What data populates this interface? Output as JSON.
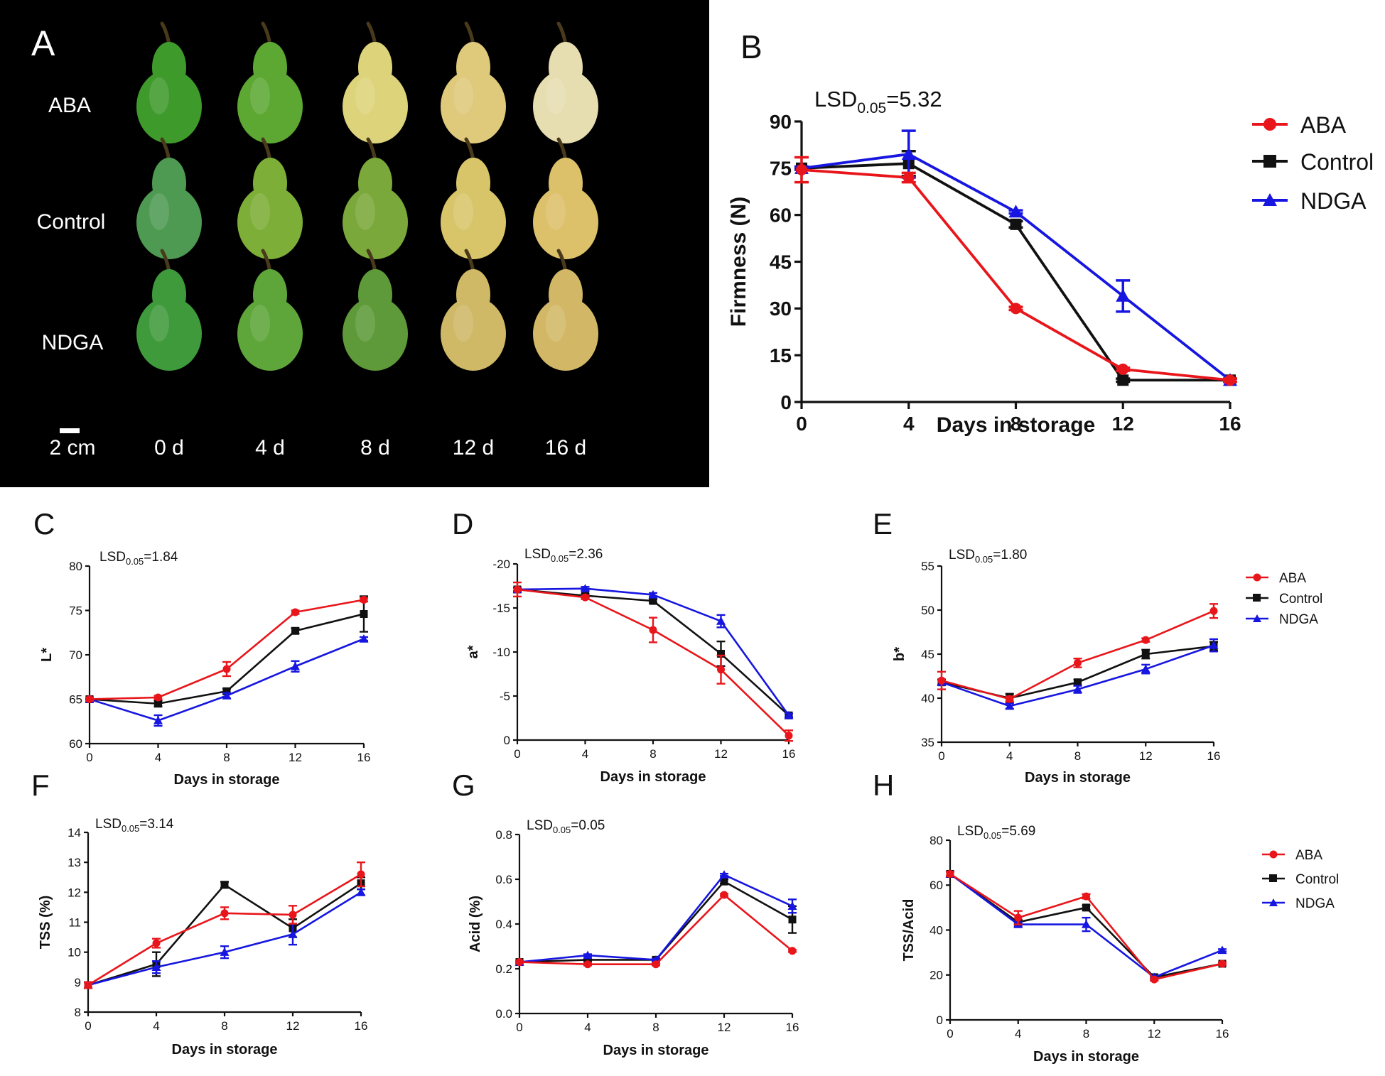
{
  "photo_panel": {
    "letter": "A",
    "rows": [
      "ABA",
      "Control",
      "NDGA"
    ],
    "days": [
      "0 d",
      "4 d",
      "8 d",
      "12 d",
      "16 d"
    ],
    "scale_label": "2 cm",
    "fruit_colors": [
      [
        "#3f9a2c",
        "#5da833",
        "#ddd37a",
        "#dfc97a",
        "#e6ddb0"
      ],
      [
        "#4e9a52",
        "#7dae37",
        "#7aa83a",
        "#d8c56a",
        "#dcc06a"
      ],
      [
        "#3f9a3c",
        "#5ea63a",
        "#5e9a3a",
        "#cfb866",
        "#d2b866"
      ]
    ]
  },
  "legend_series": [
    {
      "name": "ABA",
      "color": "#e8161b",
      "marker": "circle"
    },
    {
      "name": "Control",
      "color": "#111111",
      "marker": "square"
    },
    {
      "name": "NDGA",
      "color": "#1616e0",
      "marker": "triangle"
    }
  ],
  "chart_data": [
    {
      "id": "B",
      "letter": "B",
      "type": "line",
      "lsd": {
        "prefix": "LSD",
        "sub": "0.05",
        "value": "=5.32"
      },
      "xlabel": "Days in storage",
      "ylabel": "Firmness (N)",
      "x": [
        0,
        4,
        8,
        12,
        16
      ],
      "xticks": [
        "0",
        "4",
        "8",
        "12",
        "16"
      ],
      "ylim": [
        0,
        90
      ],
      "yticks": [
        "0",
        "15",
        "30",
        "45",
        "60",
        "75",
        "90"
      ],
      "series": [
        {
          "name": "ABA",
          "values": [
            74.5,
            72.0,
            30.0,
            10.5,
            7.0
          ],
          "err": [
            4.0,
            1.5,
            0.5,
            0.5,
            0.5
          ]
        },
        {
          "name": "Control",
          "values": [
            75.0,
            76.5,
            57.0,
            7.0,
            7.0
          ],
          "err": [
            0.5,
            4.0,
            1.0,
            0.5,
            0.5
          ]
        },
        {
          "name": "NDGA",
          "values": [
            75.0,
            79.5,
            61.0,
            34.0,
            7.0
          ],
          "err": [
            0.5,
            7.5,
            0.5,
            5.0,
            0.5
          ]
        }
      ]
    },
    {
      "id": "C",
      "letter": "C",
      "type": "line",
      "lsd": {
        "prefix": "LSD",
        "sub": "0.05",
        "value": "=1.84"
      },
      "xlabel": "Days in storage",
      "ylabel": "L*",
      "x": [
        0,
        4,
        8,
        12,
        16
      ],
      "xticks": [
        "0",
        "4",
        "8",
        "12",
        "16"
      ],
      "ylim": [
        60,
        80
      ],
      "yticks": [
        "60",
        "65",
        "70",
        "75",
        "80"
      ],
      "series": [
        {
          "name": "ABA",
          "values": [
            65.0,
            65.2,
            68.4,
            74.8,
            76.2
          ],
          "err": [
            0.2,
            0.2,
            0.8,
            0.2,
            0.2
          ]
        },
        {
          "name": "Control",
          "values": [
            65.0,
            64.5,
            65.9,
            72.7,
            74.6
          ],
          "err": [
            0.2,
            0.3,
            0.3,
            0.3,
            2.0
          ]
        },
        {
          "name": "NDGA",
          "values": [
            65.0,
            62.6,
            65.4,
            68.7,
            71.8
          ],
          "err": [
            0.2,
            0.6,
            0.3,
            0.6,
            0.2
          ]
        }
      ]
    },
    {
      "id": "D",
      "letter": "D",
      "type": "line",
      "lsd": {
        "prefix": "LSD",
        "sub": "0.05",
        "value": "=2.36"
      },
      "xlabel": "Days in storage",
      "ylabel": "a*",
      "x": [
        0,
        4,
        8,
        12,
        16
      ],
      "xticks": [
        "0",
        "4",
        "8",
        "12",
        "16"
      ],
      "ylim": [
        0,
        -20
      ],
      "yticks": [
        "0",
        "-5",
        "-10",
        "-15",
        "-20"
      ],
      "series": [
        {
          "name": "ABA",
          "values": [
            -17.1,
            -16.2,
            -12.5,
            -8.0,
            -0.5
          ],
          "err": [
            0.8,
            0.2,
            1.4,
            1.6,
            0.6
          ]
        },
        {
          "name": "Control",
          "values": [
            -17.1,
            -16.4,
            -15.8,
            -9.8,
            -2.8
          ],
          "err": [
            0.2,
            0.2,
            0.2,
            1.4,
            0.2
          ]
        },
        {
          "name": "NDGA",
          "values": [
            -17.1,
            -17.2,
            -16.5,
            -13.5,
            -2.8
          ],
          "err": [
            0.2,
            0.2,
            0.2,
            0.7,
            0.2
          ]
        }
      ]
    },
    {
      "id": "E",
      "letter": "E",
      "type": "line",
      "lsd": {
        "prefix": "LSD",
        "sub": "0.05",
        "value": "=1.80"
      },
      "xlabel": "Days in storage",
      "ylabel": "b*",
      "x": [
        0,
        4,
        8,
        12,
        16
      ],
      "xticks": [
        "0",
        "4",
        "8",
        "12",
        "16"
      ],
      "ylim": [
        35,
        55
      ],
      "yticks": [
        "35",
        "40",
        "45",
        "50",
        "55"
      ],
      "series": [
        {
          "name": "ABA",
          "values": [
            42.0,
            39.9,
            44.0,
            46.6,
            49.9
          ],
          "err": [
            1.0,
            0.3,
            0.5,
            0.2,
            0.8
          ]
        },
        {
          "name": "Control",
          "values": [
            41.8,
            40.0,
            41.8,
            45.0,
            45.9
          ],
          "err": [
            0.3,
            0.5,
            0.3,
            0.5,
            0.5
          ]
        },
        {
          "name": "NDGA",
          "values": [
            41.8,
            39.1,
            41.0,
            43.3,
            46.0
          ],
          "err": [
            0.3,
            0.3,
            0.4,
            0.5,
            0.7
          ]
        }
      ]
    },
    {
      "id": "F",
      "letter": "F",
      "type": "line",
      "lsd": {
        "prefix": "LSD",
        "sub": "0.05",
        "value": "=3.14"
      },
      "xlabel": "Days in storage",
      "ylabel": "TSS (%)",
      "x": [
        0,
        4,
        8,
        12,
        16
      ],
      "xticks": [
        "0",
        "4",
        "8",
        "12",
        "16"
      ],
      "ylim": [
        8,
        14
      ],
      "yticks": [
        "8",
        "9",
        "10",
        "11",
        "12",
        "13",
        "14"
      ],
      "series": [
        {
          "name": "ABA",
          "values": [
            8.9,
            10.3,
            11.3,
            11.25,
            12.6
          ],
          "err": [
            0.1,
            0.15,
            0.2,
            0.3,
            0.4
          ]
        },
        {
          "name": "Control",
          "values": [
            8.9,
            9.6,
            12.25,
            10.8,
            12.3
          ],
          "err": [
            0.1,
            0.4,
            0.1,
            0.3,
            0.2
          ]
        },
        {
          "name": "NDGA",
          "values": [
            8.9,
            9.5,
            10.0,
            10.6,
            12.0
          ],
          "err": [
            0.1,
            0.2,
            0.2,
            0.35,
            0.1
          ]
        }
      ]
    },
    {
      "id": "G",
      "letter": "G",
      "type": "line",
      "lsd": {
        "prefix": "LSD",
        "sub": "0.05",
        "value": "=0.05"
      },
      "xlabel": "Days in storage",
      "ylabel": "Acid (%)",
      "x": [
        0,
        4,
        8,
        12,
        16
      ],
      "xticks": [
        "0",
        "4",
        "8",
        "12",
        "16"
      ],
      "ylim": [
        0,
        0.8
      ],
      "yticks": [
        "0.0",
        "0.2",
        "0.4",
        "0.6",
        "0.8"
      ],
      "series": [
        {
          "name": "ABA",
          "values": [
            0.23,
            0.22,
            0.22,
            0.53,
            0.28
          ],
          "err": [
            0.005,
            0.005,
            0.005,
            0.005,
            0.005
          ]
        },
        {
          "name": "Control",
          "values": [
            0.23,
            0.24,
            0.24,
            0.59,
            0.42
          ],
          "err": [
            0.005,
            0.005,
            0.005,
            0.01,
            0.06
          ]
        },
        {
          "name": "NDGA",
          "values": [
            0.23,
            0.26,
            0.24,
            0.62,
            0.48
          ],
          "err": [
            0.005,
            0.005,
            0.005,
            0.005,
            0.03
          ]
        }
      ]
    },
    {
      "id": "H",
      "letter": "H",
      "type": "line",
      "lsd": {
        "prefix": "LSD",
        "sub": "0.05",
        "value": "=5.69"
      },
      "xlabel": "Days in storage",
      "ylabel": "TSS/Acid",
      "x": [
        0,
        4,
        8,
        12,
        16
      ],
      "xticks": [
        "0",
        "4",
        "8",
        "12",
        "16"
      ],
      "ylim": [
        0,
        80
      ],
      "yticks": [
        "0",
        "20",
        "40",
        "60",
        "80"
      ],
      "series": [
        {
          "name": "ABA",
          "values": [
            65.0,
            45.5,
            55.0,
            18.0,
            25.0
          ],
          "err": [
            1.0,
            3.0,
            1.0,
            0.5,
            0.5
          ]
        },
        {
          "name": "Control",
          "values": [
            65.0,
            43.5,
            50.0,
            19.0,
            25.0
          ],
          "err": [
            1.0,
            1.0,
            1.0,
            0.5,
            0.5
          ]
        },
        {
          "name": "NDGA",
          "values": [
            65.0,
            42.5,
            42.5,
            19.0,
            31.0
          ],
          "err": [
            1.0,
            1.0,
            3.0,
            0.5,
            0.5
          ]
        }
      ]
    }
  ]
}
